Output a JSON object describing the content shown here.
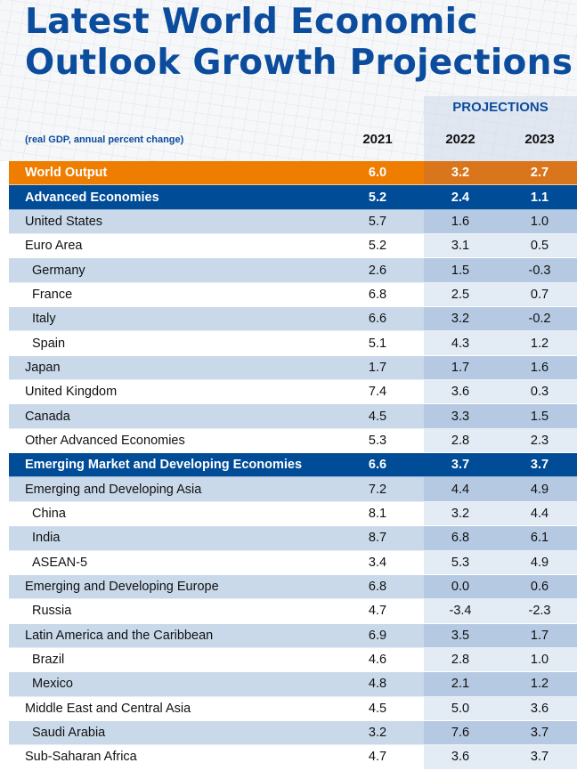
{
  "title_line1": "Latest World Economic",
  "title_line2": "Outlook Growth Projections",
  "projections_label": "PROJECTIONS",
  "subtitle": "(real GDP, annual percent change)",
  "colors": {
    "title_blue": "#0b4c9c",
    "world_orange": "#ee7d00",
    "group_blue": "#004c97",
    "shade": "#c9d9ea",
    "projection_shade": "#b5c9e2"
  },
  "chart_data": {
    "type": "table",
    "title": "Latest World Economic Outlook Growth Projections",
    "subtitle": "(real GDP, annual percent change)",
    "columns": [
      "2021",
      "2022",
      "2023"
    ],
    "column_group": {
      "label": "PROJECTIONS",
      "columns": [
        "2022",
        "2023"
      ]
    },
    "rows": [
      {
        "label": "World Output",
        "style": "world",
        "values": [
          "6.0",
          "3.2",
          "2.7"
        ]
      },
      {
        "label": "Advanced Economies",
        "style": "group",
        "values": [
          "5.2",
          "2.4",
          "1.1"
        ]
      },
      {
        "label": "United States",
        "style": "region",
        "values": [
          "5.7",
          "1.6",
          "1.0"
        ]
      },
      {
        "label": "Euro Area",
        "style": "region",
        "values": [
          "5.2",
          "3.1",
          "0.5"
        ]
      },
      {
        "label": "Germany",
        "style": "country",
        "values": [
          "2.6",
          "1.5",
          "-0.3"
        ]
      },
      {
        "label": "France",
        "style": "country",
        "values": [
          "6.8",
          "2.5",
          "0.7"
        ]
      },
      {
        "label": "Italy",
        "style": "country",
        "values": [
          "6.6",
          "3.2",
          "-0.2"
        ]
      },
      {
        "label": "Spain",
        "style": "country",
        "values": [
          "5.1",
          "4.3",
          "1.2"
        ]
      },
      {
        "label": "Japan",
        "style": "region",
        "values": [
          "1.7",
          "1.7",
          "1.6"
        ]
      },
      {
        "label": "United Kingdom",
        "style": "region",
        "values": [
          "7.4",
          "3.6",
          "0.3"
        ]
      },
      {
        "label": "Canada",
        "style": "region",
        "values": [
          "4.5",
          "3.3",
          "1.5"
        ]
      },
      {
        "label": "Other Advanced Economies",
        "style": "region",
        "values": [
          "5.3",
          "2.8",
          "2.3"
        ]
      },
      {
        "label": "Emerging Market and Developing Economies",
        "style": "group",
        "values": [
          "6.6",
          "3.7",
          "3.7"
        ]
      },
      {
        "label": "Emerging and Developing Asia",
        "style": "region",
        "values": [
          "7.2",
          "4.4",
          "4.9"
        ]
      },
      {
        "label": "China",
        "style": "country",
        "values": [
          "8.1",
          "3.2",
          "4.4"
        ]
      },
      {
        "label": "India",
        "style": "country",
        "values": [
          "8.7",
          "6.8",
          "6.1"
        ]
      },
      {
        "label": "ASEAN-5",
        "style": "country",
        "values": [
          "3.4",
          "5.3",
          "4.9"
        ]
      },
      {
        "label": "Emerging and Developing Europe",
        "style": "region",
        "values": [
          "6.8",
          "0.0",
          "0.6"
        ]
      },
      {
        "label": "Russia",
        "style": "country",
        "values": [
          "4.7",
          "-3.4",
          "-2.3"
        ]
      },
      {
        "label": "Latin America and the Caribbean",
        "style": "region",
        "values": [
          "6.9",
          "3.5",
          "1.7"
        ]
      },
      {
        "label": "Brazil",
        "style": "country",
        "values": [
          "4.6",
          "2.8",
          "1.0"
        ]
      },
      {
        "label": "Mexico",
        "style": "country",
        "values": [
          "4.8",
          "2.1",
          "1.2"
        ]
      },
      {
        "label": "Middle East and Central Asia",
        "style": "region",
        "values": [
          "4.5",
          "5.0",
          "3.6"
        ]
      },
      {
        "label": "Saudi Arabia",
        "style": "country",
        "values": [
          "3.2",
          "7.6",
          "3.7"
        ]
      },
      {
        "label": "Sub-Saharan Africa",
        "style": "region",
        "values": [
          "4.7",
          "3.6",
          "3.7"
        ]
      }
    ]
  }
}
